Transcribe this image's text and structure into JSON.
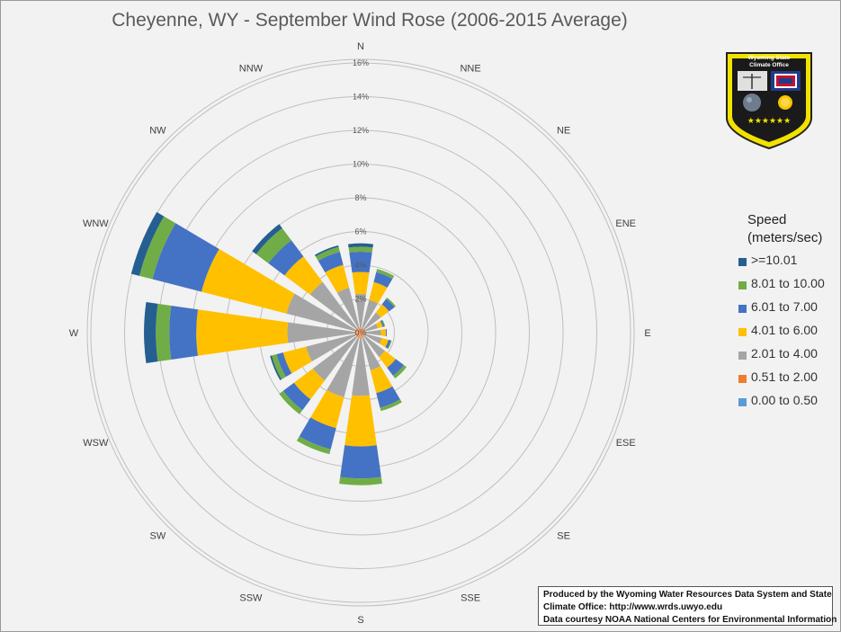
{
  "title": "Cheyenne, WY - September Wind Rose (2006-2015 Average)",
  "legend": {
    "title_line1": "Speed",
    "title_line2": "(meters/sec)"
  },
  "logo": {
    "text_line1": "Wyoming State",
    "text_line2": "Climate Office"
  },
  "credits": {
    "line1": "Produced by the Wyoming Water Resources Data System and State",
    "line2": "Climate Office: http://www.wrds.uwyo.edu",
    "line3": "Data courtesy NOAA National Centers for Environmental Information"
  },
  "chart_data": {
    "type": "bar",
    "subtype": "polar-stacked (wind rose)",
    "title": "Cheyenne, WY - September Wind Rose (2006-2015 Average)",
    "value_unit": "percent frequency",
    "radial_ticks": [
      "0%",
      "2%",
      "4%",
      "6%",
      "8%",
      "10%",
      "12%",
      "14%",
      "16%"
    ],
    "radial_range": [
      0,
      16
    ],
    "grid": true,
    "legend_position": "right",
    "categories": [
      "N",
      "NNE",
      "NE",
      "ENE",
      "E",
      "ESE",
      "SE",
      "SSE",
      "S",
      "SSW",
      "SW",
      "WSW",
      "W",
      "WNW",
      "NW",
      "NNW"
    ],
    "series": [
      {
        "name": "0.00 to 0.50",
        "color": "#5b9bd5",
        "values": [
          0.05,
          0.05,
          0.05,
          0.05,
          0.05,
          0.05,
          0.05,
          0.05,
          0.05,
          0.05,
          0.05,
          0.05,
          0.05,
          0.05,
          0.05,
          0.05
        ]
      },
      {
        "name": "0.51 to 2.00",
        "color": "#ed7d31",
        "values": [
          0.25,
          0.25,
          0.25,
          0.2,
          0.25,
          0.25,
          0.25,
          0.25,
          0.3,
          0.3,
          0.3,
          0.3,
          0.3,
          0.3,
          0.3,
          0.3
        ]
      },
      {
        "name": "2.01 to 4.00",
        "color": "#a5a5a5",
        "values": [
          2.0,
          1.7,
          1.2,
          0.8,
          0.9,
          1.0,
          1.5,
          2.0,
          3.4,
          3.6,
          3.2,
          3.0,
          4.0,
          4.2,
          3.4,
          2.4
        ]
      },
      {
        "name": "4.01 to 6.00",
        "color": "#ffc000",
        "values": [
          1.3,
          1.1,
          0.6,
          0.3,
          0.3,
          0.4,
          0.8,
          1.4,
          3.0,
          1.9,
          1.4,
          1.4,
          5.4,
          5.2,
          1.9,
          1.4
        ]
      },
      {
        "name": "6.01 to 7.00",
        "color": "#4472c4",
        "values": [
          1.2,
          0.6,
          0.4,
          0.1,
          0.05,
          0.15,
          0.6,
          0.9,
          1.9,
          1.3,
          0.8,
          0.4,
          1.6,
          3.0,
          1.2,
          0.8
        ]
      },
      {
        "name": "8.01 to 10.00",
        "color": "#70ad47",
        "values": [
          0.3,
          0.2,
          0.1,
          0.05,
          0.0,
          0.05,
          0.2,
          0.2,
          0.4,
          0.3,
          0.3,
          0.3,
          0.8,
          0.8,
          0.9,
          0.3
        ]
      },
      {
        "name": ">=10.01",
        "color": "#255e91",
        "values": [
          0.2,
          0.0,
          0.0,
          0.0,
          0.0,
          0.0,
          0.0,
          0.0,
          0.0,
          0.0,
          0.0,
          0.1,
          0.7,
          0.5,
          0.3,
          0.1
        ]
      }
    ],
    "legend_order": [
      ">=10.01",
      "8.01 to 10.00",
      "6.01 to 7.00",
      "4.01 to 6.00",
      "2.01 to 4.00",
      "0.51 to 2.00",
      "0.00 to 0.50"
    ]
  }
}
